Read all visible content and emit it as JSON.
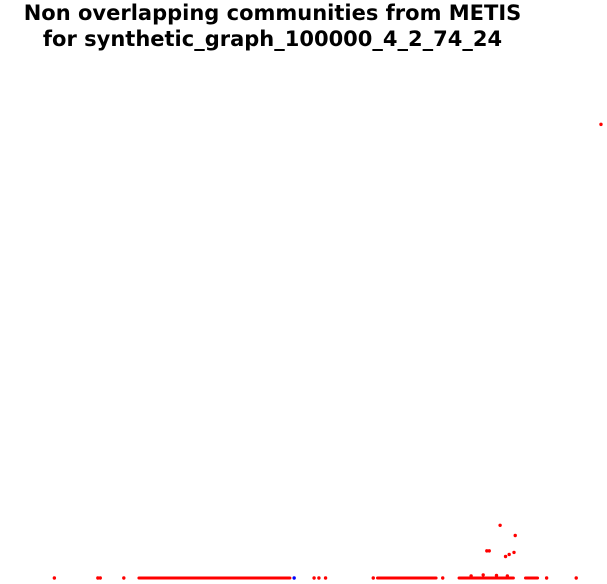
{
  "chart_data": {
    "type": "scatter",
    "title_lines": [
      "Non overlapping communities from METIS",
      "for synthetic_graph_100000_4_2_74_24"
    ],
    "xlabel": "",
    "ylabel": "",
    "grid": false,
    "axes_visible": false,
    "colors": {
      "points": "#ff0000",
      "highlight": "#0000ff"
    },
    "series": [
      {
        "color": "#ff0000",
        "points": [
          [
            0.995,
            0.886
          ],
          [
            0.09,
            0.0
          ],
          [
            0.162,
            0.0
          ],
          [
            0.166,
            0.0
          ],
          [
            0.205,
            0.0
          ],
          [
            0.52,
            0.0
          ],
          [
            0.528,
            0.0
          ],
          [
            0.539,
            0.0
          ],
          [
            0.618,
            0.0
          ],
          [
            0.733,
            0.0
          ],
          [
            0.905,
            0.0
          ],
          [
            0.954,
            0.0
          ],
          [
            0.828,
            0.103
          ],
          [
            0.853,
            0.083
          ],
          [
            0.806,
            0.053
          ],
          [
            0.81,
            0.053
          ],
          [
            0.851,
            0.05
          ],
          [
            0.843,
            0.046
          ],
          [
            0.837,
            0.042
          ],
          [
            0.78,
            0.004
          ],
          [
            0.8,
            0.006
          ],
          [
            0.822,
            0.005
          ],
          [
            0.84,
            0.004
          ]
        ],
        "segments": [
          [
            0.23,
            0.48
          ],
          [
            0.625,
            0.722
          ],
          [
            0.76,
            0.85
          ],
          [
            0.87,
            0.89
          ]
        ]
      },
      {
        "color": "#0000ff",
        "points": [
          [
            0.487,
            0.0
          ]
        ]
      }
    ]
  }
}
